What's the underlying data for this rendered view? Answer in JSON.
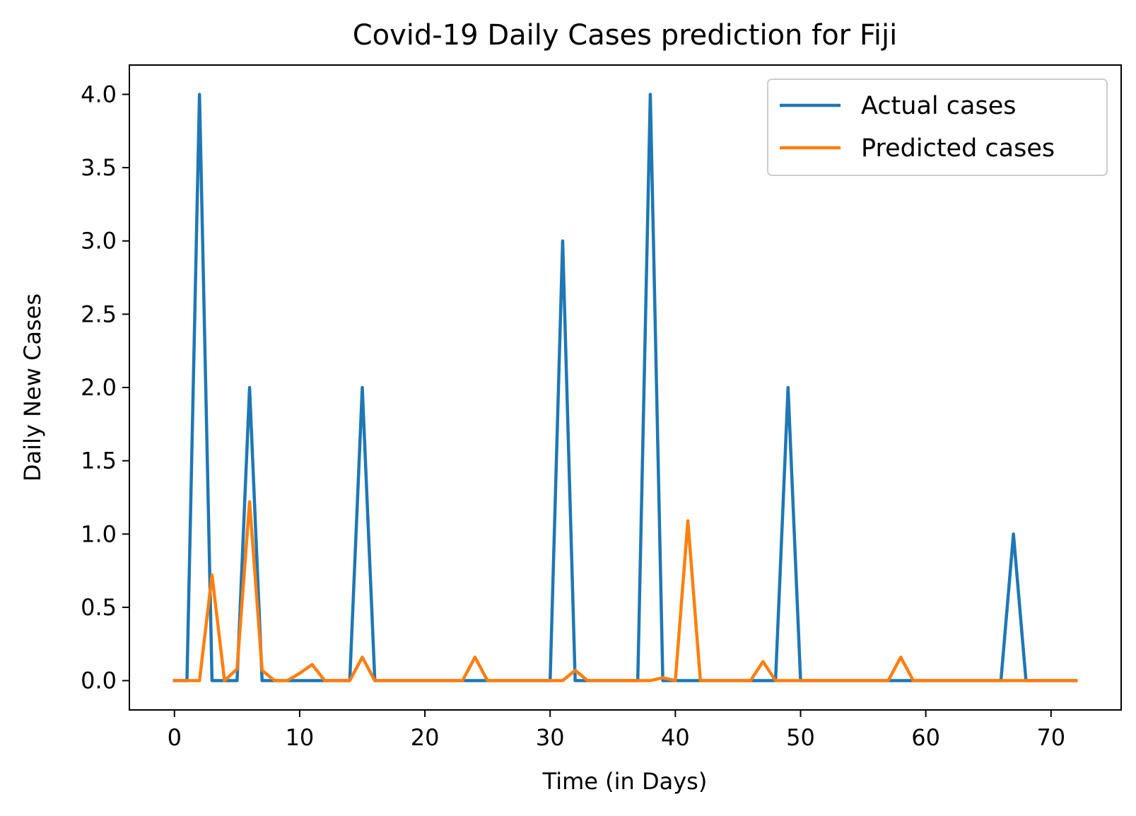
{
  "chart_data": {
    "type": "line",
    "title": "Covid-19 Daily Cases prediction for Fiji",
    "xlabel": "Time (in Days)",
    "ylabel": "Daily New Cases",
    "xlim": [
      -3.6,
      75.6
    ],
    "ylim": [
      -0.2,
      4.2
    ],
    "xticks": [
      0,
      10,
      20,
      30,
      40,
      50,
      60,
      70
    ],
    "xtick_labels": [
      "0",
      "10",
      "20",
      "30",
      "40",
      "50",
      "60",
      "70"
    ],
    "yticks": [
      0.0,
      0.5,
      1.0,
      1.5,
      2.0,
      2.5,
      3.0,
      3.5,
      4.0
    ],
    "ytick_labels": [
      "0.0",
      "0.5",
      "1.0",
      "1.5",
      "2.0",
      "2.5",
      "3.0",
      "3.5",
      "4.0"
    ],
    "grid": false,
    "legend_position": "top-right",
    "x": [
      0,
      1,
      2,
      3,
      4,
      5,
      6,
      7,
      8,
      9,
      10,
      11,
      12,
      13,
      14,
      15,
      16,
      17,
      18,
      19,
      20,
      21,
      22,
      23,
      24,
      25,
      26,
      27,
      28,
      29,
      30,
      31,
      32,
      33,
      34,
      35,
      36,
      37,
      38,
      39,
      40,
      41,
      42,
      43,
      44,
      45,
      46,
      47,
      48,
      49,
      50,
      51,
      52,
      53,
      54,
      55,
      56,
      57,
      58,
      59,
      60,
      61,
      62,
      63,
      64,
      65,
      66,
      67,
      68,
      69,
      70,
      71,
      72
    ],
    "series": [
      {
        "name": "Actual cases",
        "color": "#1f77b4",
        "values": [
          0,
          0,
          4,
          0,
          0,
          0,
          2,
          0,
          0,
          0,
          0,
          0,
          0,
          0,
          0,
          2,
          0,
          0,
          0,
          0,
          0,
          0,
          0,
          0,
          0,
          0,
          0,
          0,
          0,
          0,
          0,
          3,
          0,
          0,
          0,
          0,
          0,
          0,
          4,
          0,
          0,
          0,
          0,
          0,
          0,
          0,
          0,
          0,
          0,
          2,
          0,
          0,
          0,
          0,
          0,
          0,
          0,
          0,
          0,
          0,
          0,
          0,
          0,
          0,
          0,
          0,
          0,
          1,
          0,
          0,
          0,
          0,
          0
        ]
      },
      {
        "name": "Predicted cases",
        "color": "#ff7f0e",
        "values": [
          0,
          0,
          0,
          0.72,
          0,
          0.08,
          1.22,
          0.07,
          0,
          0,
          0.05,
          0.11,
          0,
          0,
          0,
          0.16,
          0,
          0,
          0,
          0,
          0,
          0,
          0,
          0,
          0.16,
          0,
          0,
          0,
          0,
          0,
          0,
          0,
          0.07,
          0,
          0,
          0,
          0,
          0,
          0,
          0.02,
          0,
          1.09,
          0,
          0,
          0,
          0,
          0,
          0.13,
          0,
          0,
          0,
          0,
          0,
          0,
          0,
          0,
          0,
          0,
          0.16,
          0,
          0,
          0,
          0,
          0,
          0,
          0,
          0,
          0,
          0,
          0,
          0,
          0,
          0
        ]
      }
    ]
  }
}
